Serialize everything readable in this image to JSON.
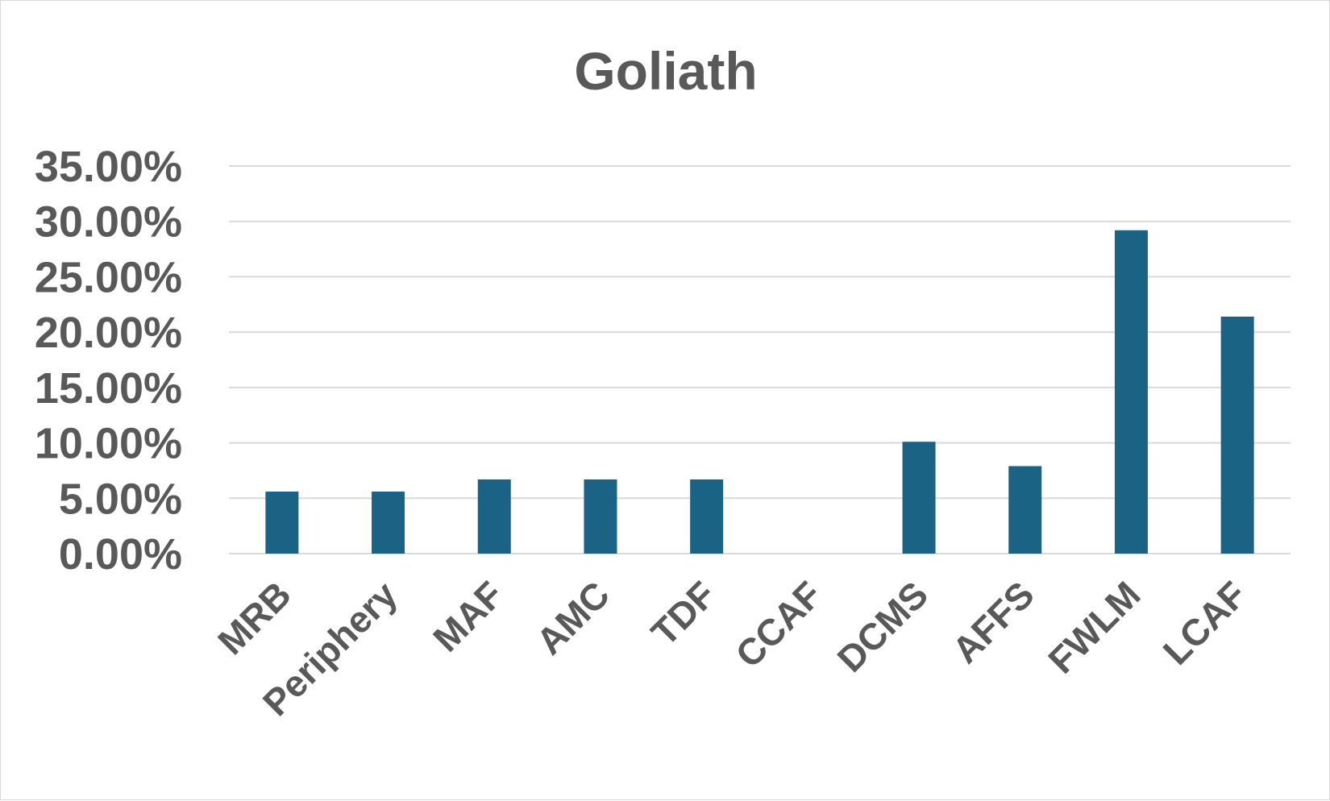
{
  "chart_data": {
    "type": "bar",
    "title": "Goliath",
    "xlabel": "",
    "ylabel": "",
    "categories": [
      "MRB",
      "Periphery",
      "MAF",
      "AMC",
      "TDF",
      "CCAF",
      "DCMS",
      "AFFS",
      "FWLM",
      "LCAF"
    ],
    "values": [
      5.6,
      5.6,
      6.7,
      6.7,
      6.7,
      0,
      10.1,
      7.9,
      29.2,
      21.4
    ],
    "value_format": "percent",
    "ylim": [
      0,
      35
    ],
    "y_ticks": [
      0,
      5,
      10,
      15,
      20,
      25,
      30,
      35
    ],
    "y_tick_labels": [
      "0.00%",
      "5.00%",
      "10.00%",
      "15.00%",
      "20.00%",
      "25.00%",
      "30.00%",
      "35.00%"
    ],
    "grid": true,
    "legend": "none",
    "bar_color": "#1a6385"
  }
}
